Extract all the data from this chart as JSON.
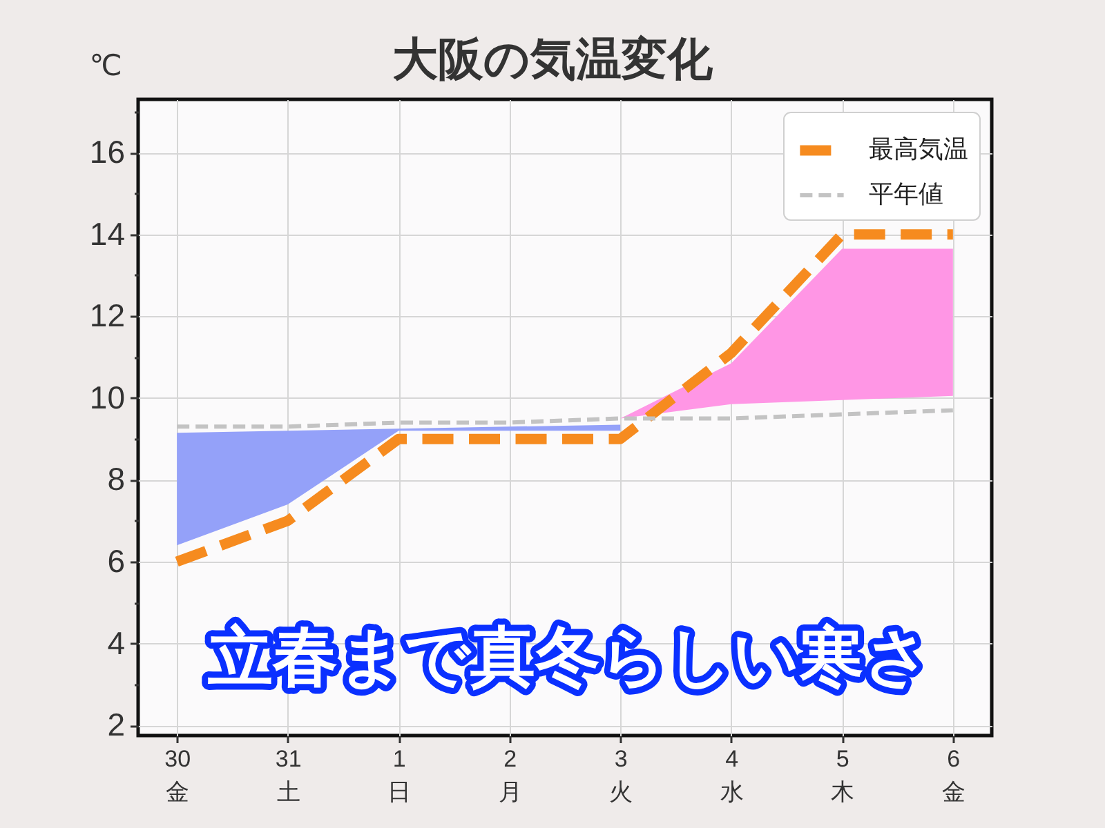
{
  "chart_data": {
    "type": "line",
    "title": "大阪の気温変化",
    "ylabel": "℃",
    "categories": [
      "30\n金",
      "31\n土",
      "1\n日",
      "2\n月",
      "3\n火",
      "4\n水",
      "5\n木",
      "6\n金"
    ],
    "series": [
      {
        "type": "area",
        "color": "#94a1f9",
        "values": [
          null,
          null,
          null,
          null,
          null,
          null,
          null,
          null
        ],
        "lower": [
          6.4,
          7.4,
          9.2,
          9.2,
          9.2,
          null,
          null,
          null
        ],
        "upper": [
          9.15,
          9.2,
          9.25,
          9.3,
          9.35,
          null,
          null,
          null
        ]
      },
      {
        "type": "area",
        "color": "#ff96e5",
        "values": [
          null,
          null,
          null,
          null,
          null,
          null,
          null,
          null
        ],
        "lower": [
          null,
          null,
          null,
          null,
          9.5,
          9.85,
          9.95,
          10.05
        ],
        "upper": [
          null,
          null,
          null,
          null,
          9.5,
          10.85,
          13.65,
          13.65
        ]
      },
      {
        "name": "最高気温",
        "color": "#f68b1f",
        "values": [
          6,
          7,
          9,
          9,
          9,
          11.1,
          14,
          14
        ]
      },
      {
        "name": "平年値",
        "color": "#c3c3c3",
        "values": [
          9.3,
          9.3,
          9.4,
          9.4,
          9.5,
          9.5,
          9.6,
          9.7
        ]
      }
    ],
    "ylim": [
      1.75,
      17.3
    ],
    "yticks": [
      2,
      {
        "value": 3,
        "label": null
      },
      4,
      {
        "value": 5,
        "label": null
      },
      6,
      {
        "value": 7,
        "label": null
      },
      8,
      {
        "value": 9,
        "label": null
      },
      10,
      {
        "value": 11,
        "label": null
      },
      12,
      {
        "value": 13,
        "label": null
      },
      14,
      {
        "value": 15,
        "label": null
      },
      16,
      {
        "value": 17,
        "label": null
      }
    ],
    "grid": true,
    "legend": "top right",
    "line_style": "dashed",
    "annotations": [
      "立春まで真冬らしい寒さ"
    ]
  }
}
